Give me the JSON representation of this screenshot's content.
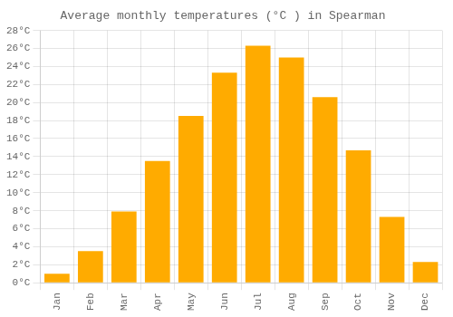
{
  "chart_data": {
    "type": "bar",
    "title": "Average monthly temperatures (°C ) in Spearman",
    "categories": [
      "Jan",
      "Feb",
      "Mar",
      "Apr",
      "May",
      "Jun",
      "Jul",
      "Aug",
      "Sep",
      "Oct",
      "Nov",
      "Dec"
    ],
    "values": [
      1.0,
      3.5,
      7.9,
      13.5,
      18.5,
      23.3,
      26.3,
      25.0,
      20.6,
      14.7,
      7.3,
      2.3
    ],
    "color": "#FFAB00",
    "ylim": [
      0,
      28
    ],
    "yticks": [
      {
        "value": 0,
        "label": "0°C"
      },
      {
        "value": 2,
        "label": "2°C"
      },
      {
        "value": 4,
        "label": "4°C"
      },
      {
        "value": 6,
        "label": "6°C"
      },
      {
        "value": 8,
        "label": "8°C"
      },
      {
        "value": 10,
        "label": "10°C"
      },
      {
        "value": 12,
        "label": "12°C"
      },
      {
        "value": 14,
        "label": "14°C"
      },
      {
        "value": 16,
        "label": "16°C"
      },
      {
        "value": 18,
        "label": "18°C"
      },
      {
        "value": 20,
        "label": "20°C"
      },
      {
        "value": 22,
        "label": "22°C"
      },
      {
        "value": 24,
        "label": "24°C"
      },
      {
        "value": 26,
        "label": "26°C"
      },
      {
        "value": 28,
        "label": "28°C"
      }
    ],
    "grid": true
  }
}
